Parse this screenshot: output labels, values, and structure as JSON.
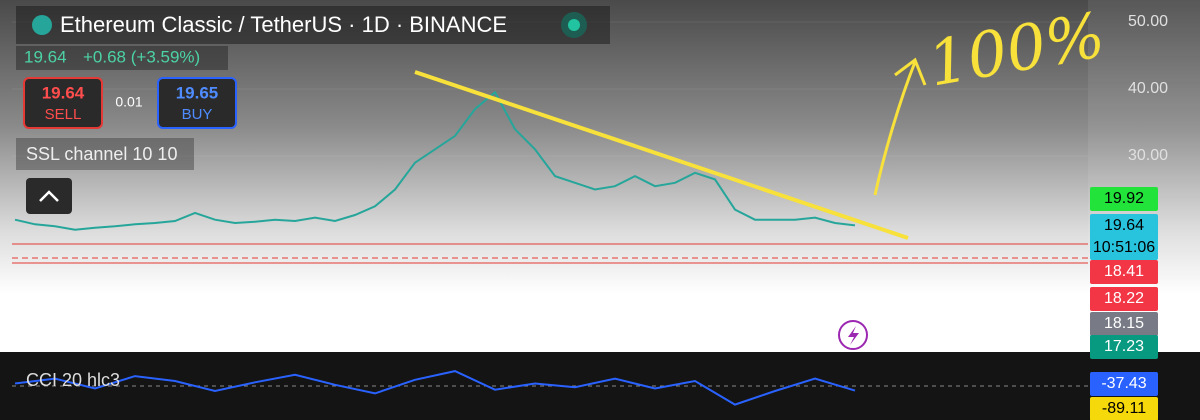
{
  "header": {
    "title": "Ethereum Classic / TetherUS · 1D · BINANCE",
    "last": "19.64",
    "change": "+0.68 (+3.59%)",
    "sell_price": "19.64",
    "sell_label": "SELL",
    "spread": "0.01",
    "buy_price": "19.65",
    "buy_label": "BUY",
    "indicator": "SSL channel 10 10"
  },
  "annotation": "100%",
  "price_tags": [
    {
      "text": "19.92",
      "color": "#22e33a",
      "fg": "#000"
    },
    {
      "text": "19.64",
      "sub": "10:51:06",
      "color": "#28c3dc",
      "fg": "#000"
    },
    {
      "text": "18.41",
      "color": "#f23645",
      "fg": "#fff"
    },
    {
      "text": "18.22",
      "color": "#f23645",
      "fg": "#fff"
    },
    {
      "text": "18.15",
      "color": "#787b86",
      "fg": "#fff"
    },
    {
      "text": "17.23",
      "color": "#089981",
      "fg": "#fff"
    }
  ],
  "oscillator": {
    "label": "CCI 20 hlc3",
    "tags": [
      {
        "text": "-37.43",
        "color": "#2962ff",
        "fg": "#fff"
      },
      {
        "text": "-89.11",
        "color": "#f5d90a",
        "fg": "#000"
      }
    ]
  },
  "chart_data": [
    {
      "type": "line",
      "color": "#26a69a",
      "categories": [
        null,
        null,
        null,
        null,
        null,
        null,
        null,
        null,
        null,
        null,
        null,
        null,
        null,
        null,
        null,
        null,
        null,
        null,
        null,
        null,
        null,
        null,
        null,
        null,
        null,
        null,
        null,
        null,
        null,
        null,
        null,
        null,
        null,
        null,
        null,
        null,
        null,
        null,
        null,
        null,
        null,
        null,
        null
      ],
      "values": [
        20.5,
        19.8,
        19.5,
        19,
        19.3,
        19.5,
        19.8,
        20,
        20.3,
        21.5,
        20.5,
        20,
        20.2,
        20.5,
        20.3,
        20.8,
        20.3,
        21.2,
        22.5,
        25,
        29,
        31,
        33,
        37,
        39.5,
        34,
        31,
        27,
        26,
        25,
        25.5,
        27,
        25.5,
        26,
        27.5,
        26.5,
        22,
        20.5,
        20.5,
        20.5,
        20.8,
        20,
        19.64
      ],
      "ylim": [
        1,
        53
      ],
      "yticks": [
        {
          "value": 30,
          "label": "30.00"
        },
        {
          "value": 40,
          "label": "40.00"
        },
        {
          "value": 50,
          "label": "50.00"
        }
      ]
    },
    {
      "type": "line",
      "color": "#2962ff",
      "categories": [
        null,
        null,
        null,
        null,
        null,
        null,
        null,
        null,
        null,
        null,
        null,
        null,
        null,
        null,
        null,
        null,
        null,
        null,
        null,
        null,
        null,
        null
      ],
      "values": [
        20,
        60,
        -20,
        80,
        40,
        -40,
        30,
        90,
        10,
        -60,
        50,
        120,
        -30,
        20,
        -10,
        60,
        -20,
        40,
        -150,
        -40,
        60,
        -37.43
      ],
      "ylim": [
        -250,
        250
      ]
    }
  ]
}
